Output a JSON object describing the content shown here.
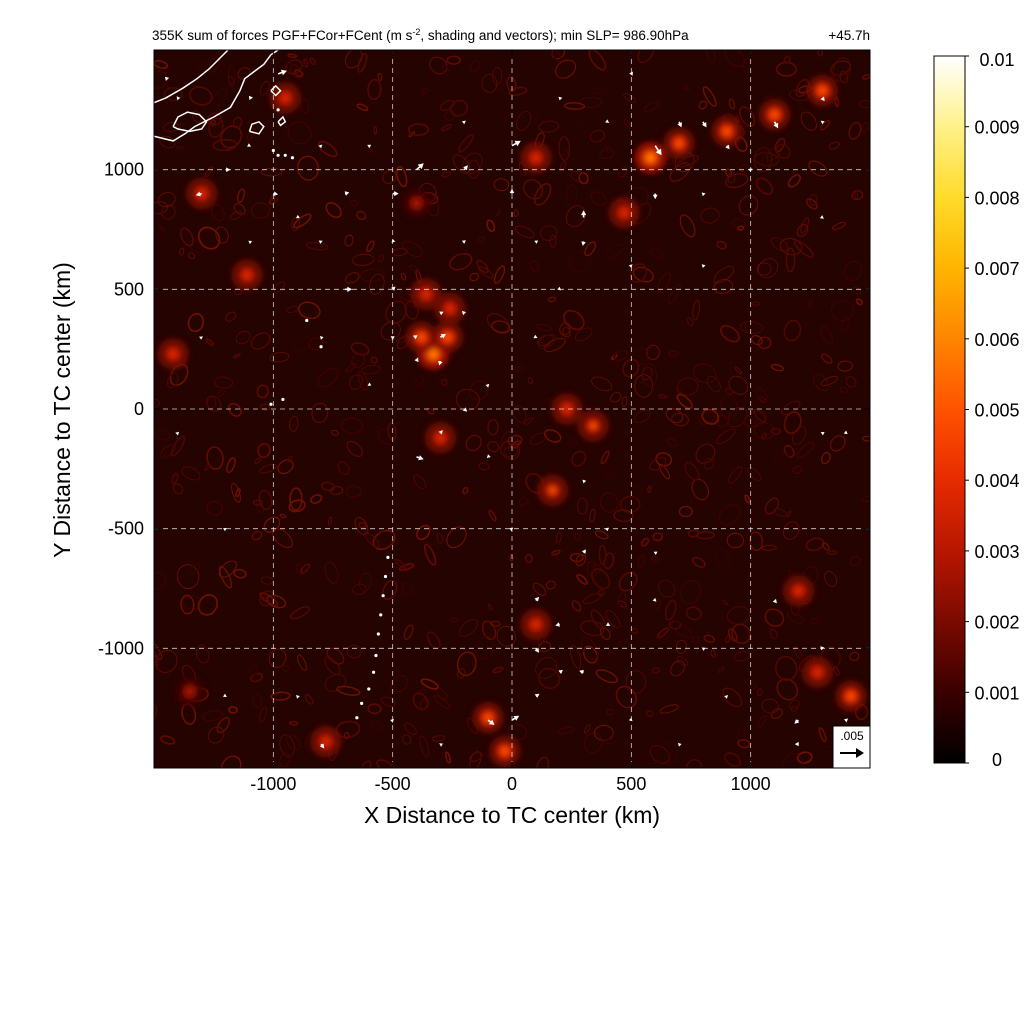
{
  "chart_data": {
    "type": "heatmap",
    "title": "355K sum of forces PGF+FCor+FCent (m s-2, shading and vectors); min SLP= 986.90hPa",
    "title_parts": {
      "before_sup": "355K sum of forces PGF+FCor+FCent (m s",
      "sup": "-2",
      "after_sup": ", shading and vectors); min SLP= 986.90hPa"
    },
    "time_label": "+45.7h",
    "xlabel": "X Distance to TC center (km)",
    "ylabel": "Y Distance to TC center (km)",
    "xlim": [
      -1500,
      1500
    ],
    "ylim": [
      -1500,
      1500
    ],
    "xticks": [
      -1000,
      -500,
      0,
      500,
      1000
    ],
    "yticks": [
      -1000,
      -500,
      0,
      500,
      1000
    ],
    "grid": true,
    "colorbar": {
      "min": 0,
      "max": 0.01,
      "ticks": [
        "0",
        "0.001",
        "0.002",
        "0.003",
        "0.004",
        "0.005",
        "0.006",
        "0.007",
        "0.008",
        "0.009",
        "0.01"
      ],
      "colors": [
        "#000000",
        "#3a0000",
        "#7a0a00",
        "#b81600",
        "#e62b00",
        "#ff5200",
        "#ff8500",
        "#ffb400",
        "#ffdb2a",
        "#fff18a",
        "#ffffff"
      ]
    },
    "reference_vector": {
      "label": ".005",
      "value": 0.005
    },
    "hotspots": [
      {
        "x": -330,
        "y": 230,
        "v": 0.0065
      },
      {
        "x": -380,
        "y": 300,
        "v": 0.005
      },
      {
        "x": -270,
        "y": 300,
        "v": 0.005
      },
      {
        "x": -360,
        "y": 480,
        "v": 0.004
      },
      {
        "x": -300,
        "y": -120,
        "v": 0.004
      },
      {
        "x": -260,
        "y": 420,
        "v": 0.0035
      },
      {
        "x": 580,
        "y": 1050,
        "v": 0.006
      },
      {
        "x": 700,
        "y": 1110,
        "v": 0.005
      },
      {
        "x": 900,
        "y": 1160,
        "v": 0.0055
      },
      {
        "x": 1100,
        "y": 1230,
        "v": 0.005
      },
      {
        "x": 1300,
        "y": 1330,
        "v": 0.005
      },
      {
        "x": 470,
        "y": 820,
        "v": 0.004
      },
      {
        "x": 230,
        "y": 0,
        "v": 0.004
      },
      {
        "x": 340,
        "y": -70,
        "v": 0.0045
      },
      {
        "x": 170,
        "y": -340,
        "v": 0.0045
      },
      {
        "x": -100,
        "y": -1290,
        "v": 0.005
      },
      {
        "x": -30,
        "y": -1430,
        "v": 0.0055
      },
      {
        "x": 1420,
        "y": -1200,
        "v": 0.0055
      },
      {
        "x": 1280,
        "y": -1100,
        "v": 0.004
      },
      {
        "x": 1200,
        "y": -760,
        "v": 0.004
      },
      {
        "x": 100,
        "y": -900,
        "v": 0.004
      },
      {
        "x": -780,
        "y": -1390,
        "v": 0.004
      },
      {
        "x": -1300,
        "y": 900,
        "v": 0.0035
      },
      {
        "x": -1110,
        "y": 560,
        "v": 0.0035
      },
      {
        "x": -1420,
        "y": 230,
        "v": 0.0035
      },
      {
        "x": -1350,
        "y": -1180,
        "v": 0.003
      },
      {
        "x": -950,
        "y": 1300,
        "v": 0.004
      },
      {
        "x": -400,
        "y": 860,
        "v": 0.003
      },
      {
        "x": 100,
        "y": 1050,
        "v": 0.0035
      }
    ],
    "vectors": [
      {
        "x": -1450,
        "y": 1380,
        "u": 0.0008,
        "v": 0.0002
      },
      {
        "x": -1100,
        "y": 1300,
        "u": 0.0009,
        "v": 0.0001
      },
      {
        "x": -980,
        "y": 1400,
        "u": 0.0022,
        "v": 0.0008
      },
      {
        "x": -1300,
        "y": 900,
        "u": -0.0015,
        "v": -0.0004
      },
      {
        "x": -1200,
        "y": 1000,
        "u": 0.0012,
        "v": 0.0
      },
      {
        "x": -1000,
        "y": 900,
        "u": 0.0012,
        "v": -0.0002
      },
      {
        "x": -700,
        "y": 900,
        "u": 0.0011,
        "v": 0.0003
      },
      {
        "x": -500,
        "y": 900,
        "u": 0.0015,
        "v": 0.0
      },
      {
        "x": -400,
        "y": 1000,
        "u": 0.0018,
        "v": 0.0016
      },
      {
        "x": -200,
        "y": 1000,
        "u": 0.0009,
        "v": 0.0011
      },
      {
        "x": 0,
        "y": 1100,
        "u": 0.0022,
        "v": 0.0012
      },
      {
        "x": 0,
        "y": 900,
        "u": 0.0,
        "v": 0.0012
      },
      {
        "x": 300,
        "y": 800,
        "u": 0.0,
        "v": 0.0018
      },
      {
        "x": 300,
        "y": 700,
        "u": -0.0002,
        "v": -0.0011
      },
      {
        "x": 600,
        "y": 1100,
        "u": 0.0016,
        "v": -0.0024
      },
      {
        "x": 600,
        "y": 900,
        "u": 0.0,
        "v": -0.0014
      },
      {
        "x": 700,
        "y": 1200,
        "u": 0.0006,
        "v": -0.0014
      },
      {
        "x": 800,
        "y": 1200,
        "u": 0.0009,
        "v": -0.0014
      },
      {
        "x": 900,
        "y": 1100,
        "u": 0.0007,
        "v": -0.0009
      },
      {
        "x": 1100,
        "y": 1200,
        "u": 0.0009,
        "v": -0.0016
      },
      {
        "x": 1300,
        "y": 1300,
        "u": 0.0006,
        "v": -0.0008
      },
      {
        "x": 500,
        "y": 1400,
        "u": 0.0004,
        "v": 0.0006
      },
      {
        "x": -700,
        "y": 500,
        "u": 0.0018,
        "v": 0.0
      },
      {
        "x": -500,
        "y": 500,
        "u": 0.0007,
        "v": 0.0007
      },
      {
        "x": -400,
        "y": 300,
        "u": -0.0009,
        "v": 0.0004
      },
      {
        "x": -300,
        "y": 300,
        "u": 0.0014,
        "v": 0.0008
      },
      {
        "x": -300,
        "y": 400,
        "u": 0.0008,
        "v": 0.0004
      },
      {
        "x": -400,
        "y": 200,
        "u": 0.0004,
        "v": 0.0009
      },
      {
        "x": -300,
        "y": 200,
        "u": -0.0003,
        "v": -0.0011
      },
      {
        "x": -200,
        "y": 0,
        "u": 0.0007,
        "v": -0.0007
      },
      {
        "x": -400,
        "y": -200,
        "u": 0.0018,
        "v": -0.0006
      },
      {
        "x": -300,
        "y": -100,
        "u": 0.0006,
        "v": 0.0007
      },
      {
        "x": -500,
        "y": 300,
        "u": 0.0,
        "v": -0.0007
      },
      {
        "x": -200,
        "y": 400,
        "u": -0.0006,
        "v": 0.0006
      },
      {
        "x": -800,
        "y": -1400,
        "u": 0.0008,
        "v": -0.0011
      },
      {
        "x": -100,
        "y": -1300,
        "u": 0.0016,
        "v": -0.0012
      },
      {
        "x": 0,
        "y": -1300,
        "u": 0.0018,
        "v": 0.0011
      },
      {
        "x": 100,
        "y": -1200,
        "u": 0.0009,
        "v": 0.0006
      },
      {
        "x": 100,
        "y": -1000,
        "u": 0.0008,
        "v": -0.0011
      },
      {
        "x": 100,
        "y": -800,
        "u": 0.0008,
        "v": 0.0009
      },
      {
        "x": 200,
        "y": -900,
        "u": -0.0011,
        "v": -0.0003
      },
      {
        "x": 200,
        "y": -1100,
        "u": 0.0008,
        "v": 0.0006
      },
      {
        "x": 300,
        "y": -1100,
        "u": -0.0011,
        "v": 0.0004
      },
      {
        "x": 300,
        "y": -600,
        "u": 0.0006,
        "v": 0.0008
      },
      {
        "x": 400,
        "y": -900,
        "u": 0.0007,
        "v": -0.0004
      },
      {
        "x": 1200,
        "y": -1300,
        "u": -0.001,
        "v": -0.0009
      },
      {
        "x": 1200,
        "y": -1400,
        "u": -0.0009,
        "v": 0.0
      },
      {
        "x": 1400,
        "y": -1300,
        "u": 0.0005,
        "v": 0.0004
      },
      {
        "x": 1300,
        "y": -1000,
        "u": -0.0005,
        "v": 0.0005
      },
      {
        "x": 1100,
        "y": -800,
        "u": 0.0006,
        "v": -0.0007
      },
      {
        "x": 1300,
        "y": 1200,
        "u": -0.0004,
        "v": 0.0003
      },
      {
        "x": 1000,
        "y": 1000,
        "u": 0.0004,
        "v": 0.0003
      },
      {
        "x": 1300,
        "y": 800,
        "u": 0.0004,
        "v": -0.0003
      },
      {
        "x": 800,
        "y": 900,
        "u": -0.0003,
        "v": 0.0003
      },
      {
        "x": 1400,
        "y": -100,
        "u": 0.0004,
        "v": -0.0003
      },
      {
        "x": 1300,
        "y": -100,
        "u": -0.0004,
        "v": 0.0002
      },
      {
        "x": -1400,
        "y": 1300,
        "u": -0.0003,
        "v": 0.0004
      },
      {
        "x": -1100,
        "y": 1100,
        "u": 0.0004,
        "v": -0.0002
      },
      {
        "x": -900,
        "y": 800,
        "u": -0.0003,
        "v": -0.0002
      },
      {
        "x": -800,
        "y": 1100,
        "u": 0.0003,
        "v": 0.0003
      },
      {
        "x": -600,
        "y": 1100,
        "u": -0.0004,
        "v": 0.0002
      },
      {
        "x": -200,
        "y": 1200,
        "u": 0.0004,
        "v": 0.0003
      },
      {
        "x": 200,
        "y": 1300,
        "u": -0.0003,
        "v": 0.0003
      },
      {
        "x": 400,
        "y": 1200,
        "u": 0.0004,
        "v": -0.0003
      },
      {
        "x": -1100,
        "y": 700,
        "u": -0.0003,
        "v": 0.0002
      },
      {
        "x": -800,
        "y": 700,
        "u": 0.0004,
        "v": 0.0002
      },
      {
        "x": -500,
        "y": 700,
        "u": -0.0003,
        "v": -0.0003
      },
      {
        "x": -200,
        "y": 700,
        "u": 0.0004,
        "v": 0.0003
      },
      {
        "x": 100,
        "y": 700,
        "u": -0.0004,
        "v": 0.0002
      },
      {
        "x": 500,
        "y": 600,
        "u": 0.0003,
        "v": 0.0003
      },
      {
        "x": 800,
        "y": 600,
        "u": -0.0003,
        "v": 0.0003
      },
      {
        "x": 200,
        "y": 500,
        "u": 0.0003,
        "v": -0.0003
      },
      {
        "x": -1300,
        "y": 300,
        "u": 0.0003,
        "v": 0.0002
      },
      {
        "x": -800,
        "y": 300,
        "u": -0.0003,
        "v": 0.0003
      },
      {
        "x": 100,
        "y": 300,
        "u": 0.0004,
        "v": -0.0002
      },
      {
        "x": -100,
        "y": -200,
        "u": -0.0003,
        "v": -0.0003
      },
      {
        "x": 0,
        "y": -500,
        "u": 0.0003,
        "v": 0.0002
      },
      {
        "x": 300,
        "y": -300,
        "u": -0.0003,
        "v": 0.0003
      },
      {
        "x": 400,
        "y": -500,
        "u": 0.0003,
        "v": 0.0003
      },
      {
        "x": 600,
        "y": -600,
        "u": -0.0004,
        "v": 0.0002
      },
      {
        "x": 600,
        "y": -800,
        "u": 0.0003,
        "v": -0.0003
      },
      {
        "x": 800,
        "y": -1000,
        "u": -0.0003,
        "v": 0.0002
      },
      {
        "x": 900,
        "y": -1200,
        "u": 0.0003,
        "v": 0.0003
      },
      {
        "x": -1200,
        "y": -500,
        "u": 0.0003,
        "v": 0.0002
      },
      {
        "x": -900,
        "y": -1200,
        "u": -0.0003,
        "v": 0.0003
      },
      {
        "x": -1200,
        "y": -1200,
        "u": 0.0003,
        "v": -0.0002
      },
      {
        "x": -500,
        "y": -1300,
        "u": 0.0003,
        "v": 0.0003
      },
      {
        "x": -300,
        "y": -1400,
        "u": -0.0003,
        "v": 0.0002
      },
      {
        "x": 500,
        "y": -1300,
        "u": 0.0003,
        "v": -0.0003
      },
      {
        "x": 700,
        "y": -1400,
        "u": -0.0003,
        "v": 0.0003
      },
      {
        "x": -100,
        "y": 100,
        "u": 0.0003,
        "v": 0.0003
      },
      {
        "x": -600,
        "y": 100,
        "u": -0.0003,
        "v": -0.0002
      },
      {
        "x": -1400,
        "y": -100,
        "u": 0.0003,
        "v": 0.0003
      }
    ],
    "coastline_km": [
      [
        [
          -1500,
          1140
        ],
        [
          -1420,
          1120
        ],
        [
          -1370,
          1150
        ],
        [
          -1330,
          1180
        ],
        [
          -1250,
          1220
        ],
        [
          -1180,
          1260
        ],
        [
          -1140,
          1330
        ],
        [
          -1120,
          1380
        ],
        [
          -1080,
          1410
        ],
        [
          -1040,
          1440
        ],
        [
          -1010,
          1480
        ],
        [
          -980,
          1500
        ]
      ],
      [
        [
          -1500,
          1280
        ],
        [
          -1450,
          1300
        ],
        [
          -1380,
          1340
        ],
        [
          -1320,
          1380
        ],
        [
          -1270,
          1420
        ],
        [
          -1230,
          1460
        ],
        [
          -1190,
          1500
        ]
      ],
      [
        [
          -1420,
          1180
        ],
        [
          -1400,
          1220
        ],
        [
          -1360,
          1240
        ],
        [
          -1310,
          1230
        ],
        [
          -1280,
          1200
        ],
        [
          -1300,
          1170
        ],
        [
          -1350,
          1160
        ],
        [
          -1400,
          1170
        ],
        [
          -1420,
          1180
        ]
      ],
      [
        [
          -1100,
          1160
        ],
        [
          -1090,
          1190
        ],
        [
          -1060,
          1200
        ],
        [
          -1040,
          1180
        ],
        [
          -1060,
          1150
        ],
        [
          -1100,
          1160
        ]
      ],
      [
        [
          -1010,
          1330
        ],
        [
          -990,
          1350
        ],
        [
          -970,
          1330
        ],
        [
          -990,
          1310
        ],
        [
          -1010,
          1330
        ]
      ],
      [
        [
          -980,
          1200
        ],
        [
          -960,
          1220
        ],
        [
          -950,
          1200
        ],
        [
          -970,
          1185
        ],
        [
          -980,
          1200
        ]
      ]
    ],
    "coast_dots_km": [
      [
        -980,
        1250
      ],
      [
        -1000,
        1080
      ],
      [
        -980,
        1060
      ],
      [
        -950,
        1060
      ],
      [
        -920,
        1050
      ],
      [
        -520,
        -620
      ],
      [
        -530,
        -700
      ],
      [
        -540,
        -780
      ],
      [
        -550,
        -860
      ],
      [
        -560,
        -940
      ],
      [
        -570,
        -1030
      ],
      [
        -580,
        -1100
      ],
      [
        -600,
        -1170
      ],
      [
        -630,
        -1230
      ],
      [
        -650,
        -1290
      ],
      [
        -960,
        40
      ],
      [
        -1010,
        20
      ],
      [
        -860,
        370
      ],
      [
        -800,
        260
      ]
    ]
  },
  "colors": {
    "background": "#ffffff",
    "axis": "#000000",
    "grid": "#ffffff",
    "vector": "#ffffff",
    "coastline": "#ffffff"
  }
}
